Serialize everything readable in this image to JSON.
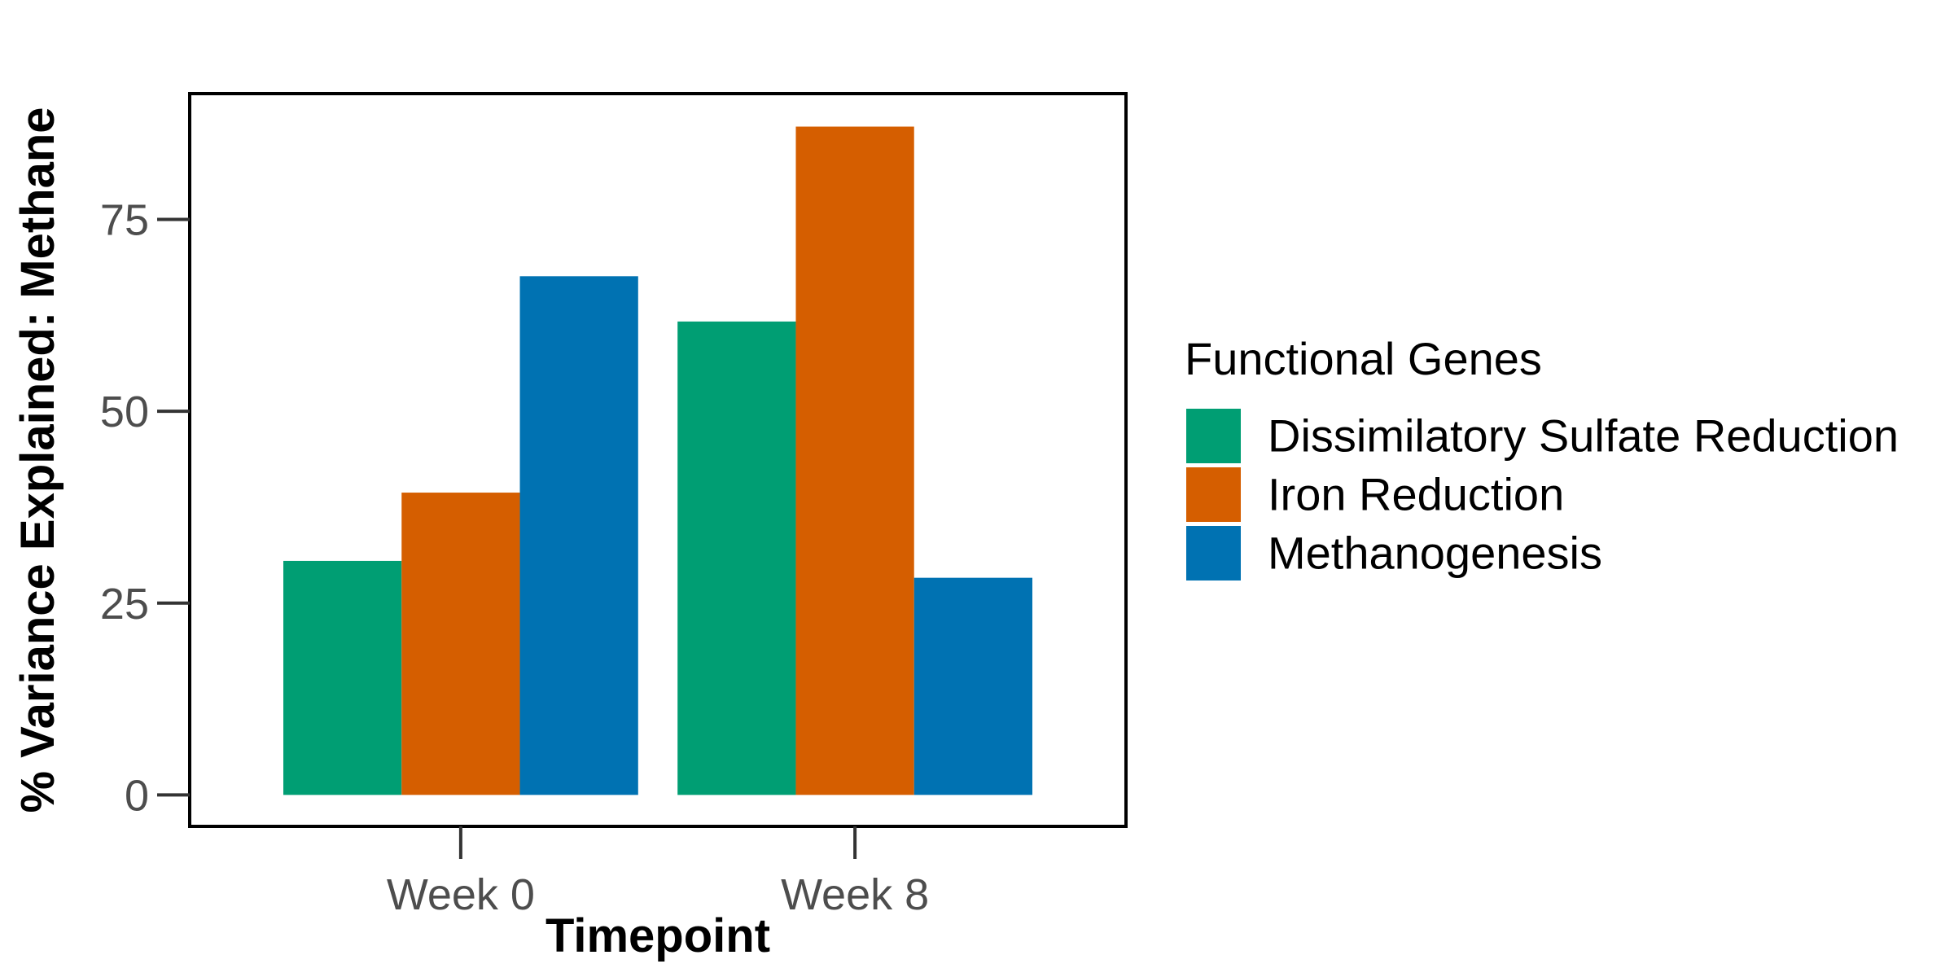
{
  "chart_data": {
    "type": "bar",
    "xlabel": "Timepoint",
    "ylabel": "% Variance Explained: Methane",
    "categories": [
      "Week 0",
      "Week 8"
    ],
    "series": [
      {
        "name": "Dissimilatory Sulfate Reduction",
        "color": "#009E73",
        "values": [
          30.5,
          61.7
        ]
      },
      {
        "name": "Iron Reduction",
        "color": "#D55E00",
        "values": [
          39.4,
          87.1
        ]
      },
      {
        "name": "Methanogenesis",
        "color": "#0072B2",
        "values": [
          67.6,
          28.3
        ]
      }
    ],
    "yticks": [
      0,
      25,
      50,
      75
    ],
    "ytick_labels": [
      "0",
      "25",
      "50",
      "75"
    ],
    "ylim": [
      -4.1,
      91.4
    ],
    "legend": {
      "title": "Functional Genes",
      "position": "right"
    },
    "grid": false
  }
}
